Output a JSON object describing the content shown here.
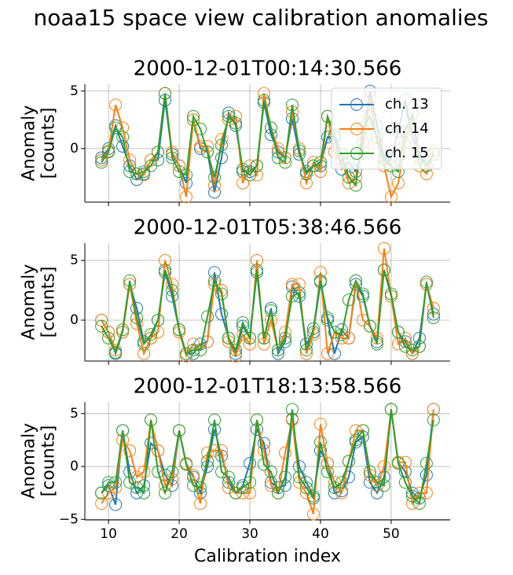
{
  "suptitle": "noaa15 space view calibration anomalies",
  "chart_data": [
    {
      "type": "line",
      "title": "2000-12-01T00:14:30.566",
      "ylabel": "Anomaly\n[counts]",
      "grid": true,
      "legend": "upper right",
      "x": [
        9,
        10,
        11,
        12,
        13,
        14,
        15,
        16,
        17,
        18,
        19,
        20,
        21,
        22,
        23,
        24,
        25,
        26,
        27,
        28,
        29,
        30,
        31,
        32,
        33,
        34,
        35,
        36,
        37,
        38,
        39,
        40,
        41,
        42,
        43,
        44,
        45,
        46,
        47,
        48,
        49,
        50,
        51,
        52,
        53,
        54,
        55,
        56
      ],
      "xlim": [
        6.65,
        58.35
      ],
      "ylim": [
        -4.66,
        5.6
      ],
      "yticks": [
        0,
        5
      ],
      "series": [
        {
          "name": "ch. 13",
          "color": "#1f77b4",
          "values": [
            -0.8,
            0,
            2,
            0.2,
            -1.5,
            -2.7,
            -2.2,
            -1,
            -1,
            4.2,
            -0.5,
            -1.5,
            -3,
            2.5,
            0,
            -0.3,
            -3.8,
            -0.8,
            3.1,
            2,
            -2,
            -2,
            -1.5,
            4,
            1.2,
            -0.3,
            -0.8,
            2.6,
            -0.5,
            -2,
            -1.5,
            -1.5,
            1,
            1,
            -1.8,
            -1.2,
            -2,
            0.5,
            5,
            2,
            -0.8,
            -0.8,
            1.5,
            4.2,
            1,
            -0.4,
            -1.5,
            -0.5
          ]
        },
        {
          "name": "ch. 14",
          "color": "#ff7f0e",
          "values": [
            -1,
            -0.2,
            3.8,
            1.8,
            -1,
            -2.2,
            -2.3,
            -1,
            -0.3,
            4.8,
            -0.3,
            -1.5,
            -4.2,
            2.5,
            0.2,
            0.2,
            -3.2,
            0.8,
            2.5,
            2.8,
            -3,
            -1.5,
            -2.3,
            4.8,
            1.8,
            0,
            -0.8,
            3.2,
            0,
            -3,
            -1.2,
            -2,
            2.8,
            -0.3,
            -1,
            -3,
            -2.5,
            0,
            4.5,
            0.5,
            -1.5,
            -4.2,
            -3,
            0.5,
            3,
            -1.5,
            -2.2,
            -0.2
          ]
        },
        {
          "name": "ch. 15",
          "color": "#2ca02c",
          "values": [
            -1.2,
            -0.3,
            1.8,
            1,
            -2,
            -2.2,
            -2,
            -1.5,
            -0.3,
            4.8,
            -0.8,
            -2,
            -2.3,
            2.8,
            1.7,
            -0.3,
            -2.5,
            0.3,
            2.8,
            2.2,
            -1.8,
            -2.3,
            -1.5,
            4.2,
            1.8,
            -0.8,
            -1.2,
            3.8,
            -0.2,
            -2.2,
            -1.5,
            -1.2,
            2.8,
            1.2,
            -0.5,
            -2.5,
            -3.2,
            1.8,
            2.8,
            1,
            -1,
            -1.5,
            -2,
            1.5,
            3,
            -0.8,
            -1.5,
            -0.5
          ]
        }
      ]
    },
    {
      "type": "line",
      "title": "2000-12-01T05:38:46.566",
      "ylabel": "Anomaly\n[counts]",
      "grid": true,
      "x": [
        9,
        10,
        11,
        12,
        13,
        14,
        15,
        16,
        17,
        18,
        19,
        20,
        21,
        22,
        23,
        24,
        25,
        26,
        27,
        28,
        29,
        30,
        31,
        32,
        33,
        34,
        35,
        36,
        37,
        38,
        39,
        40,
        41,
        42,
        43,
        44,
        45,
        46,
        47,
        48,
        49,
        50,
        51,
        52,
        53,
        54,
        55,
        56
      ],
      "xlim": [
        6.65,
        58.35
      ],
      "ylim": [
        -3.42,
        6.45
      ],
      "yticks": [
        0,
        5
      ],
      "series": [
        {
          "color": "#1f77b4",
          "values": [
            0,
            -1,
            -2.8,
            -1,
            3,
            1,
            -1.8,
            -1.5,
            0,
            4,
            2,
            -0.8,
            -2.8,
            -2.8,
            -2,
            -1.8,
            4,
            0.5,
            -1.5,
            -2.8,
            -0.5,
            -1.5,
            4,
            -1.5,
            1,
            -2.8,
            -1.8,
            2.8,
            2,
            -2,
            -1,
            3.2,
            0,
            -2.8,
            -0.8,
            -1.5,
            3,
            2,
            -0.5,
            -1.8,
            4.2,
            2,
            -1,
            -1.8,
            -2.8,
            -1.5,
            3,
            0.5
          ]
        },
        {
          "color": "#ff7f0e",
          "values": [
            0,
            -1,
            -2.5,
            -1,
            3,
            -0.3,
            -2.8,
            -1.5,
            -1,
            5,
            3,
            -1,
            -3,
            -2,
            -2.5,
            -1.8,
            3,
            2.5,
            -1.8,
            -3,
            -1.2,
            -2,
            5,
            -2,
            0,
            -2.5,
            -1,
            3,
            3,
            -2.8,
            -1.2,
            4,
            -2.8,
            -1,
            -1.5,
            -1.5,
            3.3,
            0,
            -0.5,
            -1.5,
            6,
            2,
            -2,
            -1.5,
            -2.8,
            -2.2,
            3,
            1
          ]
        },
        {
          "color": "#2ca02c",
          "values": [
            -0.5,
            -1.5,
            -2.7,
            -0.8,
            3.3,
            0.2,
            -2,
            -1.2,
            0,
            4.2,
            2.5,
            -0.8,
            -2.8,
            -2.5,
            -2.5,
            0.3,
            3.3,
            2.2,
            -1.5,
            -2.5,
            -0.2,
            -1.5,
            4.2,
            -1.5,
            0.8,
            -2.5,
            -1.5,
            2,
            2.3,
            -2.5,
            -0.7,
            3.3,
            0.2,
            -1,
            -1.2,
            1.7,
            3.3,
            2.2,
            -0.5,
            -2,
            4.2,
            2.2,
            -1,
            -2.2,
            -2.5,
            -2.2,
            3.2,
            0.2
          ]
        }
      ]
    },
    {
      "type": "line",
      "title": "2000-12-01T18:13:58.566",
      "ylabel": "Anomaly\n[counts]",
      "xlabel": "Calibration index",
      "grid": true,
      "x": [
        9,
        10,
        11,
        12,
        13,
        14,
        15,
        16,
        17,
        18,
        19,
        20,
        21,
        22,
        23,
        24,
        25,
        26,
        27,
        28,
        29,
        30,
        31,
        32,
        33,
        34,
        35,
        36,
        37,
        38,
        39,
        40,
        41,
        42,
        43,
        44,
        45,
        46,
        47,
        48,
        49,
        50,
        51,
        52,
        53,
        54,
        55,
        56
      ],
      "xlim": [
        6.65,
        58.35
      ],
      "ylim": [
        -5.05,
        6.1
      ],
      "xticks": [
        10,
        20,
        30,
        40,
        50
      ],
      "yticks": [
        {
          "value": -5,
          "label": "−5"
        },
        0,
        5
      ],
      "series": [
        {
          "color": "#1f77b4",
          "values": [
            -2.5,
            -1.8,
            -3.6,
            3.4,
            -0.5,
            -2.5,
            -1.8,
            2.2,
            1.5,
            -0.8,
            -1.8,
            3.4,
            0.2,
            -1,
            -2.5,
            0,
            3.5,
            1,
            -1.5,
            -2.5,
            -1.8,
            0.3,
            3.5,
            2.2,
            -1.5,
            -2,
            -1.8,
            4.5,
            0,
            -1.5,
            -2.8,
            1.5,
            0.3,
            -2.5,
            -2.3,
            -1,
            2.3,
            2.8,
            -1.5,
            -2.5,
            -1,
            5.4,
            0.4,
            -0.5,
            -2.5,
            -3,
            -0.8,
            5.4
          ]
        },
        {
          "color": "#ff7f0e",
          "values": [
            -3.5,
            -2.5,
            -2,
            2.5,
            1.5,
            -1,
            -0.5,
            4.4,
            1.5,
            -1.8,
            -1.2,
            3.4,
            0.3,
            -0.8,
            -3.5,
            1.3,
            1.5,
            1.5,
            -2,
            -2.5,
            -2.5,
            -2.5,
            4.4,
            1.5,
            -1.8,
            -2.5,
            1.3,
            4.4,
            -1.5,
            -2.5,
            -4.5,
            4,
            0.3,
            -1.5,
            -2.5,
            0.5,
            3.4,
            3.4,
            -0.8,
            -1.8,
            0,
            5.4,
            0.4,
            0.4,
            -3.5,
            -2.5,
            -2.5,
            5.4
          ]
        },
        {
          "color": "#2ca02c",
          "values": [
            -2.5,
            -1.5,
            -1.5,
            3.4,
            -1.5,
            -2,
            -2.5,
            4.4,
            -0.5,
            -2.5,
            -0.5,
            3.4,
            0.2,
            -1.8,
            -2,
            0.5,
            4.4,
            -0.5,
            -1,
            -2.5,
            -2,
            -1.5,
            4.4,
            0.2,
            -0.5,
            -2.5,
            -1,
            5.4,
            -1,
            -2,
            -3,
            2.3,
            -0.5,
            -2,
            -1.5,
            0.5,
            2.5,
            3.4,
            -0.5,
            -1.5,
            -1.8,
            5.4,
            0.3,
            -1.5,
            -2.8,
            -3.5,
            0.3,
            4.4
          ]
        }
      ]
    }
  ]
}
